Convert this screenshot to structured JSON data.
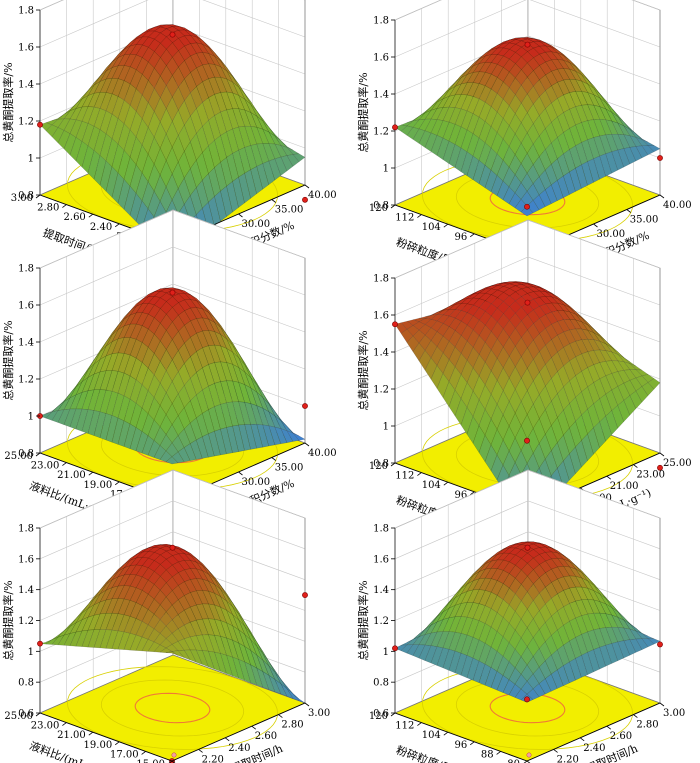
{
  "colors": {
    "floor": "#f2ee00",
    "floor_dark": "#d8d000",
    "contour": "#f07a36",
    "surface_low": "#3c7fd6",
    "surface_mid": "#6fb43a",
    "surface_high": "#c62b1b",
    "design_point": "#e0201a"
  },
  "chart_data": [
    {
      "type": "surface",
      "zlabel": "总黄酮提取率/%",
      "ztick_labels": [
        "0.8",
        "1",
        "1.2",
        "1.4",
        "1.6",
        "1.8"
      ],
      "zlim": [
        0.8,
        1.8
      ],
      "left_label": "提取时间/h",
      "left_ticks": [
        "3.00",
        "2.80",
        "2.60",
        "2.40",
        "2.20",
        "2.00"
      ],
      "left_range": [
        2.0,
        3.0
      ],
      "right_label": "乙醇体积分数/%",
      "right_ticks": [
        "20.00",
        "25.00",
        "30.00",
        "35.00",
        "40.00"
      ],
      "right_range": [
        20,
        40
      ],
      "center_value": 1.62,
      "min_value": 0.72,
      "design_points": [
        1.62,
        1.18,
        0.95,
        0.72
      ]
    },
    {
      "type": "surface",
      "zlabel": "总黄酮提取率/%",
      "ztick_labels": [
        "0.8",
        "1",
        "1.2",
        "1.4",
        "1.6",
        "1.8"
      ],
      "zlim": [
        0.8,
        1.8
      ],
      "left_label": "粉碎粒度/目",
      "left_ticks": [
        "120",
        "112",
        "104",
        "96",
        "88",
        "80"
      ],
      "left_range": [
        80,
        120
      ],
      "right_label": "乙醇体积分数/%",
      "right_ticks": [
        "20.00",
        "25.00",
        "30.00",
        "35.00",
        "40.00"
      ],
      "right_range": [
        20,
        40
      ],
      "center_value": 1.62,
      "min_value": 1.0,
      "design_points": [
        1.62,
        1.22,
        1.05,
        1.0
      ]
    },
    {
      "type": "surface",
      "zlabel": "总黄酮提取率/%",
      "ztick_labels": [
        "0.8",
        "1",
        "1.2",
        "1.4",
        "1.6",
        "1.8"
      ],
      "zlim": [
        0.8,
        1.8
      ],
      "left_label": "液料比/(mL·g⁻¹)",
      "left_ticks": [
        "25.00",
        "23.00",
        "21.00",
        "19.00",
        "17.00",
        "15.00"
      ],
      "left_range": [
        15,
        25
      ],
      "right_label": "乙醇体积分数/%",
      "right_ticks": [
        "20.00",
        "25.00",
        "30.00",
        "35.00",
        "40.00"
      ],
      "right_range": [
        20,
        40
      ],
      "center_value": 1.62,
      "min_value": 0.82,
      "design_points": [
        1.62,
        1.0,
        0.82,
        1.0
      ]
    },
    {
      "type": "surface",
      "zlabel": "总黄酮提取率/%",
      "ztick_labels": [
        "0.8",
        "1",
        "1.2",
        "1.4",
        "1.6",
        "1.8"
      ],
      "zlim": [
        0.8,
        1.8
      ],
      "left_label": "粉碎粒度/目",
      "left_ticks": [
        "120",
        "112",
        "104",
        "96",
        "88",
        "80"
      ],
      "left_range": [
        80,
        120
      ],
      "right_label": "液料比/(mL·g⁻¹)",
      "right_ticks": [
        "15.00",
        "17.00",
        "19.00",
        "21.00",
        "23.00",
        "25.00"
      ],
      "right_range": [
        15,
        25
      ],
      "center_value": 1.62,
      "min_value": 0.72,
      "design_points": [
        1.62,
        1.55,
        1.18,
        0.72
      ]
    },
    {
      "type": "surface",
      "zlabel": "总黄酮提取率/%",
      "ztick_labels": [
        "0.6",
        "0.8",
        "1",
        "1.2",
        "1.4",
        "1.6",
        "1.8"
      ],
      "zlim": [
        0.6,
        1.8
      ],
      "left_label": "液料比/(mL·g⁻¹)",
      "left_ticks": [
        "25.00",
        "23.00",
        "21.00",
        "19.00",
        "17.00",
        "15.00"
      ],
      "left_range": [
        15,
        25
      ],
      "right_label": "提取时间/h",
      "right_ticks": [
        "2.00",
        "2.20",
        "2.40",
        "2.60",
        "2.80",
        "3.00"
      ],
      "right_range": [
        2.0,
        3.0
      ],
      "center_value": 1.62,
      "min_value": 0.6,
      "design_points": [
        1.62,
        1.05,
        0.6,
        1.3
      ]
    },
    {
      "type": "surface",
      "zlabel": "总黄酮提取率/%",
      "ztick_labels": [
        "0.6",
        "0.8",
        "1",
        "1.2",
        "1.4",
        "1.6",
        "1.8"
      ],
      "zlim": [
        0.6,
        1.8
      ],
      "left_label": "粉碎粒度/目",
      "left_ticks": [
        "120",
        "112",
        "104",
        "96",
        "88",
        "80"
      ],
      "left_range": [
        80,
        120
      ],
      "right_label": "提取时间/h",
      "right_ticks": [
        "2.00",
        "2.20",
        "2.40",
        "2.60",
        "2.80",
        "3.00"
      ],
      "right_range": [
        2.0,
        3.0
      ],
      "center_value": 1.62,
      "min_value": 0.95,
      "design_points": [
        1.62,
        1.02,
        1.0,
        0.98
      ]
    }
  ]
}
